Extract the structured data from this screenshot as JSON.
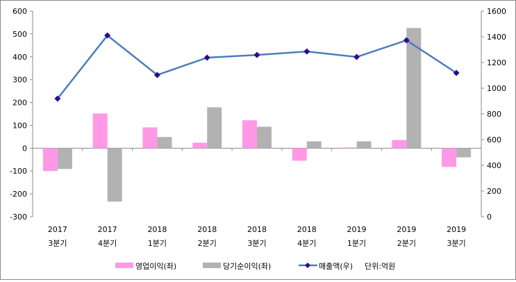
{
  "chart_data": {
    "type": "bar+line",
    "categories": [
      [
        "2017",
        "3분기"
      ],
      [
        "2017",
        "4분기"
      ],
      [
        "2018",
        "1분기"
      ],
      [
        "2018",
        "2분기"
      ],
      [
        "2018",
        "3분기"
      ],
      [
        "2018",
        "4분기"
      ],
      [
        "2019",
        "1분기"
      ],
      [
        "2019",
        "2분기"
      ],
      [
        "2019",
        "3분기"
      ]
    ],
    "left_axis": {
      "ylim": [
        -300,
        600
      ],
      "ticks": [
        -300,
        -200,
        -100,
        0,
        100,
        200,
        300,
        400,
        500,
        600
      ]
    },
    "right_axis": {
      "ylim": [
        0,
        1600
      ],
      "ticks": [
        0,
        200,
        400,
        600,
        800,
        1000,
        1200,
        1400,
        1600
      ]
    },
    "series": [
      {
        "name": "영업이익(좌)",
        "type": "bar",
        "axis": "left",
        "color": "#ff99e6",
        "values": [
          -100,
          152,
          91,
          24,
          122,
          -55,
          3,
          36,
          -82
        ]
      },
      {
        "name": "당기순이익(좌)",
        "type": "bar",
        "axis": "left",
        "color": "#b2b2b2",
        "values": [
          -91,
          -234,
          49,
          179,
          94,
          30,
          30,
          526,
          -40
        ]
      },
      {
        "name": "매출액(우)",
        "type": "line",
        "axis": "right",
        "color": "#4a7ebb",
        "marker_color": "#2e0a8c",
        "values": [
          919,
          1411,
          1103,
          1238,
          1259,
          1286,
          1243,
          1373,
          1119
        ]
      }
    ],
    "unit_note": "단위:억원",
    "legend_position": "bottom",
    "grid": false
  }
}
